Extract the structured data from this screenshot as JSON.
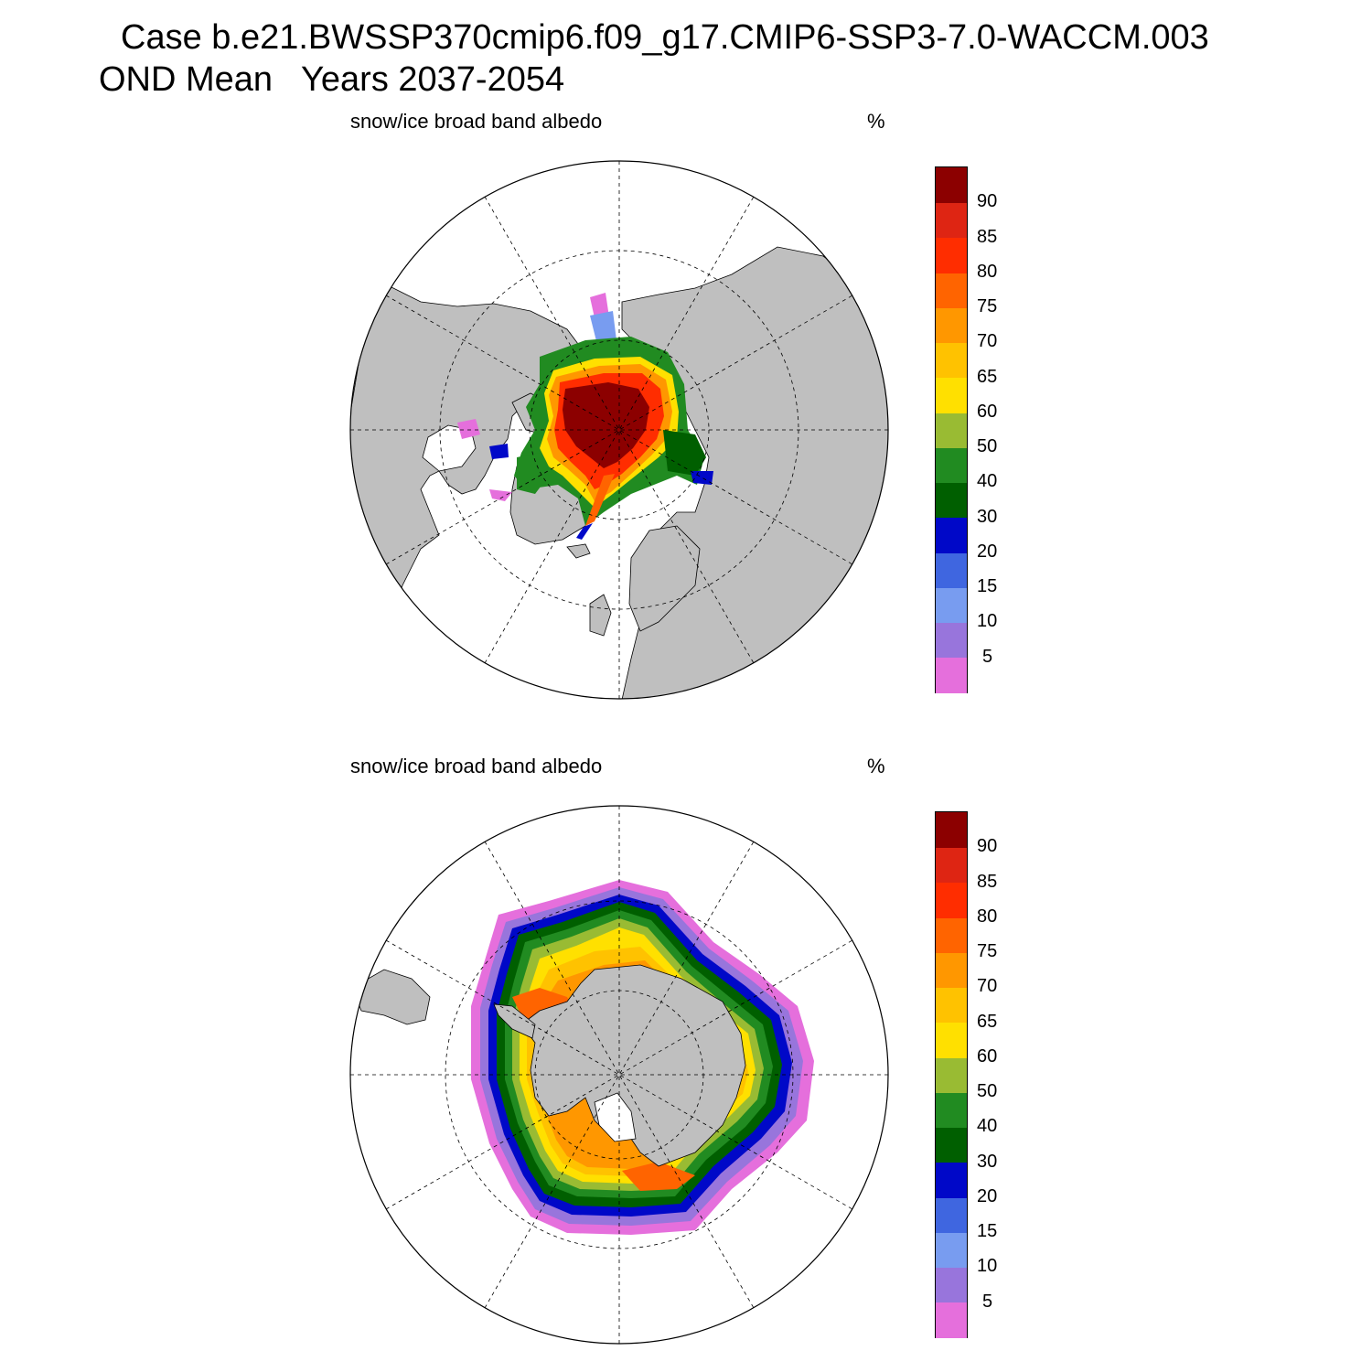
{
  "title": {
    "line1": "Case b.e21.BWSSP370cmip6.f09_g17.CMIP6-SSP3-7.0-WACCM.003",
    "line2": "OND Mean   Years 2037-2054"
  },
  "panels": [
    {
      "id": "north",
      "hemisphere": "Northern",
      "variable_label": "snow/ice broad band albedo",
      "units": "%"
    },
    {
      "id": "south",
      "hemisphere": "Southern",
      "variable_label": "snow/ice broad band albedo",
      "units": "%"
    }
  ],
  "colorbar": {
    "tick_labels": [
      "5",
      "10",
      "15",
      "20",
      "30",
      "40",
      "50",
      "60",
      "65",
      "70",
      "75",
      "80",
      "85",
      "90"
    ],
    "colors_bottom_to_top": [
      "#e56fdc",
      "#9875dc",
      "#789cf0",
      "#3f66e0",
      "#0008c8",
      "#005f00",
      "#218b21",
      "#99bb33",
      "#ffe000",
      "#ffc200",
      "#ff9700",
      "#ff6400",
      "#ff2d00",
      "#de2513",
      "#8c0000"
    ]
  },
  "colors": {
    "land": "#bfbfbf",
    "ocean": "#ffffff",
    "grid": "#000000"
  }
}
